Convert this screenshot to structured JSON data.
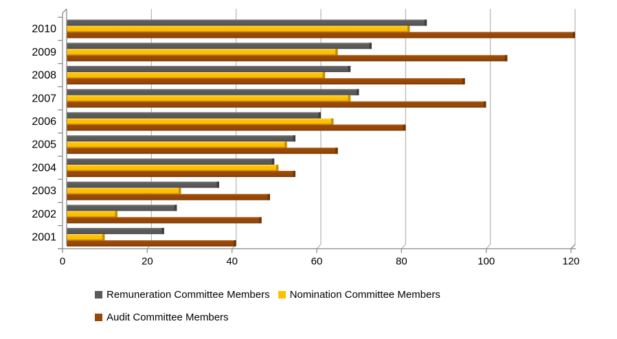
{
  "chart_data": {
    "type": "bar",
    "orientation": "horizontal",
    "title": "",
    "xlabel": "",
    "ylabel": "",
    "categories": [
      "2010",
      "2009",
      "2008",
      "2007",
      "2006",
      "2005",
      "2004",
      "2003",
      "2002",
      "2001"
    ],
    "series": [
      {
        "name": "Remuneration Committee Members",
        "color": "#5a5a5a",
        "color_light": "#787878",
        "color_dark": "#3f3f3f",
        "values": [
          85,
          72,
          67,
          69,
          60,
          54,
          49,
          36,
          26,
          23
        ]
      },
      {
        "name": "Nomination Committee Members",
        "color": "#ffc000",
        "color_light": "#ffd75e",
        "color_dark": "#c28f00",
        "values": [
          81,
          64,
          61,
          67,
          63,
          52,
          50,
          27,
          12,
          9
        ]
      },
      {
        "name": "Audit Committee Members",
        "color": "#974706",
        "color_light": "#ad5a12",
        "color_dark": "#6f3404",
        "values": [
          120,
          104,
          94,
          99,
          80,
          64,
          54,
          48,
          46,
          40
        ]
      }
    ],
    "xlim": [
      0,
      120
    ],
    "x_ticks": [
      0,
      20,
      40,
      60,
      80,
      100,
      120
    ],
    "grid": true,
    "legend_position": "bottom",
    "grid_color": "#a6a6a6",
    "axis_color": "#8a8a8a",
    "text_color": "#000000"
  }
}
